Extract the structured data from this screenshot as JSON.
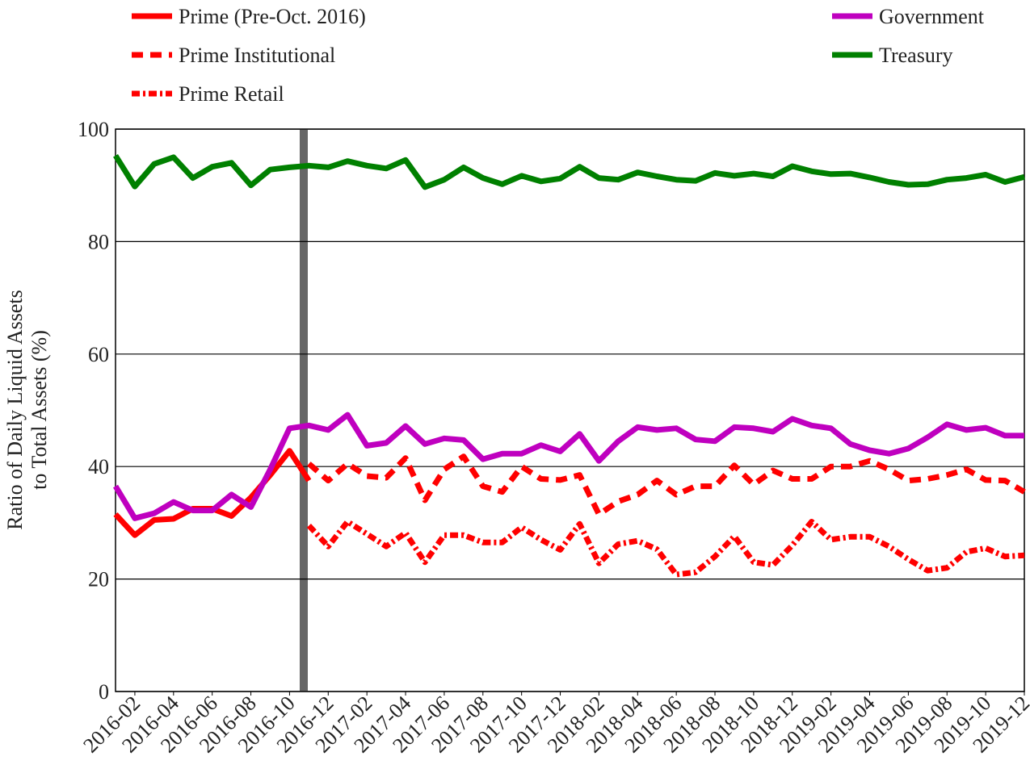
{
  "chart_data": {
    "type": "line",
    "y_label": [
      "Ratio of Daily Liquid Assets",
      "to Total Assets (%)"
    ],
    "categories": [
      null,
      "2016-02",
      null,
      "2016-04",
      null,
      "2016-06",
      null,
      "2016-08",
      null,
      "2016-10",
      null,
      "2016-12",
      null,
      "2017-02",
      null,
      "2017-04",
      null,
      "2017-06",
      null,
      "2017-08",
      null,
      "2017-10",
      null,
      "2017-12",
      null,
      "2018-02",
      null,
      "2018-04",
      null,
      "2018-06",
      null,
      "2018-08",
      null,
      "2018-10",
      null,
      "2018-12",
      null,
      "2019-02",
      null,
      "2019-04",
      null,
      "2019-06",
      null,
      "2019-08",
      null,
      "2019-10",
      null,
      "2019-12"
    ],
    "series": [
      {
        "name": "Prime (Pre-Oct. 2016)",
        "color": "#ff0000",
        "dash": "solid",
        "values": [
          31.5,
          27.8,
          30.5,
          30.7,
          32.5,
          32.5,
          31.2,
          34.5,
          38.5,
          42.8,
          37.5,
          null,
          null,
          null,
          null,
          null,
          null,
          null,
          null,
          null,
          null,
          null,
          null,
          null,
          null,
          null,
          null,
          null,
          null,
          null,
          null,
          null,
          null,
          null,
          null,
          null,
          null,
          null,
          null,
          null,
          null,
          null,
          null,
          null,
          null,
          null,
          null,
          null
        ]
      },
      {
        "name": "Prime Institutional",
        "color": "#ff0000",
        "dash": "dashed",
        "values": [
          null,
          null,
          null,
          null,
          null,
          null,
          null,
          null,
          null,
          null,
          40.5,
          37.5,
          40.5,
          38.3,
          38,
          41.5,
          34,
          39.5,
          41.8,
          36.5,
          35.5,
          40,
          37.8,
          37.6,
          38.5,
          31.5,
          33.8,
          35,
          37.5,
          35,
          36.5,
          36.5,
          40.2,
          36.8,
          39.3,
          37.8,
          37.8,
          40,
          40,
          41,
          39.5,
          37.5,
          37.8,
          38.5,
          39.5,
          37.6,
          37.5,
          35.5
        ]
      },
      {
        "name": "Prime Retail",
        "color": "#ff0000",
        "dash": "dashdot",
        "values": [
          null,
          null,
          null,
          null,
          null,
          null,
          null,
          null,
          null,
          null,
          29.5,
          25.8,
          30.2,
          28,
          25.8,
          28.2,
          23,
          27.8,
          27.8,
          26.5,
          26.5,
          29.2,
          27,
          25.2,
          29.8,
          22.8,
          26.2,
          26.8,
          25.3,
          20.8,
          21.2,
          24,
          27.6,
          23,
          22.5,
          26,
          30.2,
          27,
          27.5,
          27.5,
          25.8,
          23.5,
          21.5,
          22,
          24.8,
          25.5,
          24,
          24.2
        ]
      },
      {
        "name": "Government",
        "color": "#bf00bf",
        "dash": "solid",
        "values": [
          36.5,
          30.8,
          31.7,
          33.7,
          32.2,
          32.2,
          35,
          32.8,
          39.5,
          46.8,
          47.3,
          46.5,
          49.2,
          43.7,
          44.2,
          47.2,
          44,
          45,
          44.7,
          41.3,
          42.3,
          42.3,
          43.8,
          42.7,
          45.8,
          41,
          44.5,
          47,
          46.5,
          46.8,
          44.8,
          44.5,
          47,
          46.8,
          46.2,
          48.5,
          47.3,
          46.8,
          44,
          42.9,
          42.3,
          43.2,
          45.2,
          47.5,
          46.5,
          46.9,
          45.5,
          45.5
        ]
      },
      {
        "name": "Treasury",
        "color": "#008000",
        "dash": "solid",
        "values": [
          95.3,
          89.8,
          93.8,
          95,
          91.3,
          93.3,
          94,
          90,
          92.8,
          93.2,
          93.5,
          93.2,
          94.3,
          93.5,
          93,
          94.5,
          89.7,
          91,
          93.2,
          91.3,
          90.2,
          91.7,
          90.7,
          91.2,
          93.3,
          91.3,
          91,
          92.3,
          91.6,
          91,
          90.8,
          92.2,
          91.7,
          92.1,
          91.6,
          93.4,
          92.5,
          92,
          92.1,
          91.4,
          90.6,
          90.1,
          90.2,
          91,
          91.3,
          91.9,
          90.6,
          91.5
        ]
      }
    ],
    "ylim": [
      0,
      100
    ],
    "yticks": [
      0,
      20,
      40,
      60,
      80,
      100
    ],
    "grid": true
  }
}
